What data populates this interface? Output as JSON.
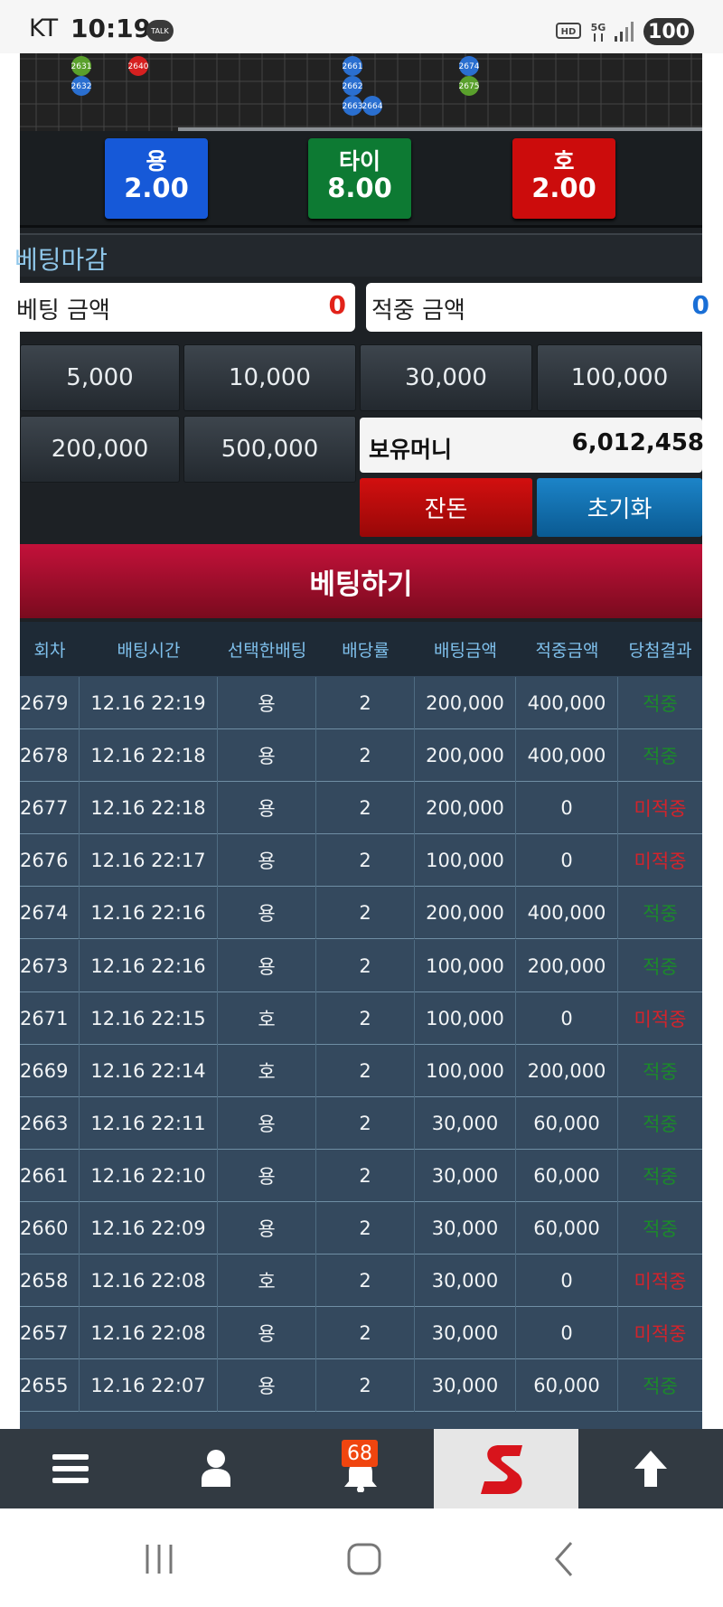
{
  "status_bar": {
    "carrier": "KT",
    "time": "10:19",
    "talk": "TALK",
    "battery": "100"
  },
  "beads": [
    {
      "label": "2631",
      "color": "#5aa02c"
    },
    {
      "label": "2632",
      "color": "#2a6fd0"
    },
    {
      "label": "2640",
      "color": "#d62020"
    },
    {
      "label": "2661",
      "color": "#2a6fd0"
    },
    {
      "label": "2662",
      "color": "#2a6fd0"
    },
    {
      "label": "2663",
      "color": "#2a6fd0"
    },
    {
      "label": "2664",
      "color": "#2a6fd0"
    },
    {
      "label": "2674",
      "color": "#2a6fd0"
    },
    {
      "label": "2675",
      "color": "#5aa02c"
    }
  ],
  "odds": [
    {
      "name": "용",
      "value": "2.00",
      "color": "#1659d8"
    },
    {
      "name": "타이",
      "value": "8.00",
      "color": "#0d7a33"
    },
    {
      "name": "호",
      "value": "2.00",
      "color": "#cc0c0c"
    }
  ],
  "status_label": "베팅마감",
  "bet_amount": {
    "label": "베팅 금액",
    "value": "0"
  },
  "win_amount": {
    "label": "적중 금액",
    "value": "0"
  },
  "chips": [
    "5,000",
    "10,000",
    "30,000",
    "100,000",
    "200,000",
    "500,000"
  ],
  "balance": {
    "label": "보유머니",
    "value": "6,012,458"
  },
  "buttons": {
    "change": "잔돈",
    "reset": "초기화",
    "bet": "베팅하기"
  },
  "table": {
    "headers": [
      "회차",
      "배팅시간",
      "선택한배팅",
      "배당률",
      "배팅금액",
      "적중금액",
      "당첨결과"
    ],
    "rows": [
      {
        "cells": [
          "2679",
          "12.16 22:19",
          "용",
          "2",
          "200,000",
          "400,000",
          "적중"
        ],
        "result_color": "#1b8a2a"
      },
      {
        "cells": [
          "2678",
          "12.16 22:18",
          "용",
          "2",
          "200,000",
          "400,000",
          "적중"
        ],
        "result_color": "#1b8a2a"
      },
      {
        "cells": [
          "2677",
          "12.16 22:18",
          "용",
          "2",
          "200,000",
          "0",
          "미적중"
        ],
        "result_color": "#d4232b"
      },
      {
        "cells": [
          "2676",
          "12.16 22:17",
          "용",
          "2",
          "100,000",
          "0",
          "미적중"
        ],
        "result_color": "#d4232b"
      },
      {
        "cells": [
          "2674",
          "12.16 22:16",
          "용",
          "2",
          "200,000",
          "400,000",
          "적중"
        ],
        "result_color": "#1b8a2a"
      },
      {
        "cells": [
          "2673",
          "12.16 22:16",
          "용",
          "2",
          "100,000",
          "200,000",
          "적중"
        ],
        "result_color": "#1b8a2a"
      },
      {
        "cells": [
          "2671",
          "12.16 22:15",
          "호",
          "2",
          "100,000",
          "0",
          "미적중"
        ],
        "result_color": "#d4232b"
      },
      {
        "cells": [
          "2669",
          "12.16 22:14",
          "호",
          "2",
          "100,000",
          "200,000",
          "적중"
        ],
        "result_color": "#1b8a2a"
      },
      {
        "cells": [
          "2663",
          "12.16 22:11",
          "용",
          "2",
          "30,000",
          "60,000",
          "적중"
        ],
        "result_color": "#1b8a2a"
      },
      {
        "cells": [
          "2661",
          "12.16 22:10",
          "용",
          "2",
          "30,000",
          "60,000",
          "적중"
        ],
        "result_color": "#1b8a2a"
      },
      {
        "cells": [
          "2660",
          "12.16 22:09",
          "용",
          "2",
          "30,000",
          "60,000",
          "적중"
        ],
        "result_color": "#1b8a2a"
      },
      {
        "cells": [
          "2658",
          "12.16 22:08",
          "호",
          "2",
          "30,000",
          "0",
          "미적중"
        ],
        "result_color": "#d4232b"
      },
      {
        "cells": [
          "2657",
          "12.16 22:08",
          "용",
          "2",
          "30,000",
          "0",
          "미적중"
        ],
        "result_color": "#d4232b"
      },
      {
        "cells": [
          "2655",
          "12.16 22:07",
          "용",
          "2",
          "30,000",
          "60,000",
          "적중"
        ],
        "result_color": "#1b8a2a"
      }
    ]
  },
  "nav": {
    "badge": "68"
  }
}
